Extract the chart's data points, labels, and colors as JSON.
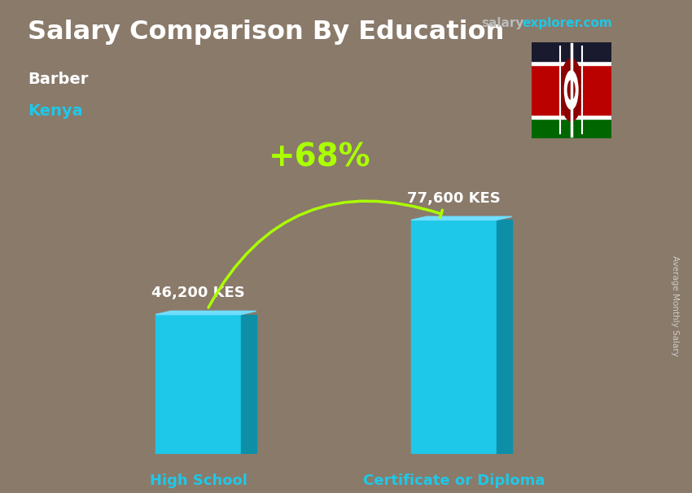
{
  "title": "Salary Comparison By Education",
  "subtitle_job": "Barber",
  "subtitle_location": "Kenya",
  "ylabel_rotated": "Average Monthly Salary",
  "categories": [
    "High School",
    "Certificate or Diploma"
  ],
  "values": [
    46200,
    77600
  ],
  "value_labels": [
    "46,200 KES",
    "77,600 KES"
  ],
  "bar_color_main": "#1EC8E8",
  "bar_color_dark": "#0E8FA8",
  "bar_color_top": "#70DEFF",
  "pct_label": "+68%",
  "pct_color": "#AAFF00",
  "arrow_color": "#AAFF00",
  "title_color": "#FFFFFF",
  "subtitle_job_color": "#FFFFFF",
  "subtitle_location_color": "#1EC8E8",
  "category_label_color": "#1EC8E8",
  "value_label_color": "#FFFFFF",
  "site_color1": "#BBBBBB",
  "site_color2": "#1EC8E8",
  "bg_color": "#8a7a6a",
  "title_fontsize": 23,
  "subtitle_fontsize": 14,
  "value_fontsize": 13,
  "category_fontsize": 13,
  "pct_fontsize": 28,
  "bar_width": 0.14,
  "ylim_max": 95000,
  "positions": [
    0.28,
    0.7
  ]
}
